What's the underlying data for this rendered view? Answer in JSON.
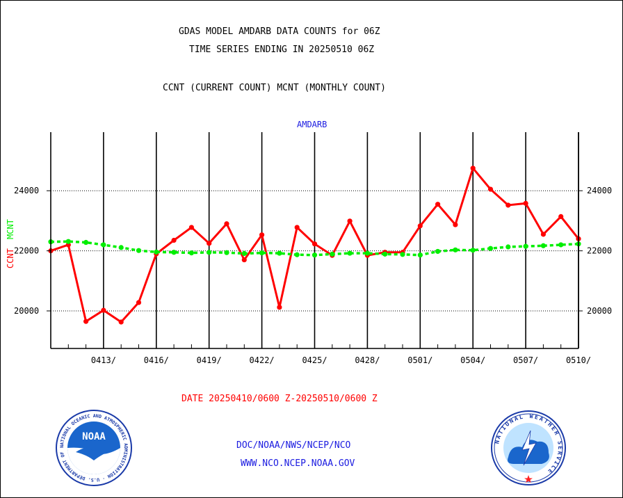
{
  "header": {
    "title_line1": "GDAS MODEL AMDARB DATA COUNTS for 06Z",
    "title_line2": "TIME SERIES ENDING IN 20250510 06Z",
    "subtitle": "CCNT (CURRENT COUNT) MCNT (MONTHLY COUNT)"
  },
  "footer": {
    "date_range": "DATE 20250410/0600 Z-20250510/0600 Z",
    "org_line": "DOC/NOAA/NWS/NCEP/NCO",
    "url_line": "WWW.NCO.NCEP.NOAA.GOV"
  },
  "logos": {
    "noaa_text": "NOAA",
    "noaa_ring": "NATIONAL OCEANIC AND ATMOSPHERIC ADMINISTRATION · U.S. DEPARTMENT OF COMMERCE ·",
    "nws_ring": "NATIONAL WEATHER SERVICE"
  },
  "colors": {
    "ccnt": "#ff0000",
    "mcnt": "#00ee00",
    "axis": "#000000",
    "panel_label": "#1a1ae0"
  },
  "chart_data": {
    "type": "line",
    "title": "AMDARB",
    "ylabel_ccnt": "CCNT",
    "ylabel_mcnt": "MCNT",
    "ylim": [
      18750,
      25950
    ],
    "y_ticks": [
      20000,
      22000,
      24000
    ],
    "y_tick_labels": [
      "20000",
      "22000",
      "24000"
    ],
    "x_range": [
      "2025-04-10",
      "2025-05-10"
    ],
    "x_ticks": [
      "2025-04-13",
      "2025-04-16",
      "2025-04-19",
      "2025-04-22",
      "2025-04-25",
      "2025-04-28",
      "2025-05-01",
      "2025-05-04",
      "2025-05-07",
      "2025-05-10"
    ],
    "x_tick_labels": [
      "0413/",
      "0416/",
      "0419/",
      "0422/",
      "0425/",
      "0428/",
      "0501/",
      "0504/",
      "0507/",
      "0510/"
    ],
    "grid": true,
    "series": [
      {
        "name": "CCNT",
        "color": "#ff0000",
        "points": [
          [
            "2025-04-10",
            22000
          ],
          [
            "2025-04-11",
            22200
          ],
          [
            "2025-04-12",
            19650
          ],
          [
            "2025-04-13",
            20020
          ],
          [
            "2025-04-14",
            19630
          ],
          [
            "2025-04-15",
            20280
          ],
          [
            "2025-04-16",
            21900
          ],
          [
            "2025-04-17",
            22350
          ],
          [
            "2025-04-18",
            22780
          ],
          [
            "2025-04-19",
            22250
          ],
          [
            "2025-04-20",
            22900
          ],
          [
            "2025-04-21",
            21700
          ],
          [
            "2025-04-22",
            22530
          ],
          [
            "2025-04-23",
            20120
          ],
          [
            "2025-04-24",
            22780
          ],
          [
            "2025-04-25",
            22230
          ],
          [
            "2025-04-26",
            21850
          ],
          [
            "2025-04-27",
            22990
          ],
          [
            "2025-04-28",
            21850
          ],
          [
            "2025-04-29",
            21950
          ],
          [
            "2025-04-30",
            21950
          ],
          [
            "2025-05-01",
            22830
          ],
          [
            "2025-05-02",
            23550
          ],
          [
            "2025-05-03",
            22870
          ],
          [
            "2025-05-04",
            24750
          ],
          [
            "2025-05-05",
            24050
          ],
          [
            "2025-05-06",
            23520
          ],
          [
            "2025-05-07",
            23580
          ],
          [
            "2025-05-08",
            22550
          ],
          [
            "2025-05-09",
            23140
          ],
          [
            "2025-05-10",
            22400
          ]
        ]
      },
      {
        "name": "MCNT",
        "color": "#00ee00",
        "points": [
          [
            "2025-04-10",
            22300
          ],
          [
            "2025-04-11",
            22310
          ],
          [
            "2025-04-12",
            22280
          ],
          [
            "2025-04-13",
            22200
          ],
          [
            "2025-04-14",
            22110
          ],
          [
            "2025-04-15",
            22010
          ],
          [
            "2025-04-16",
            21960
          ],
          [
            "2025-04-17",
            21950
          ],
          [
            "2025-04-18",
            21930
          ],
          [
            "2025-04-19",
            21950
          ],
          [
            "2025-04-20",
            21940
          ],
          [
            "2025-04-21",
            21910
          ],
          [
            "2025-04-22",
            21930
          ],
          [
            "2025-04-23",
            21920
          ],
          [
            "2025-04-24",
            21870
          ],
          [
            "2025-04-25",
            21860
          ],
          [
            "2025-04-26",
            21890
          ],
          [
            "2025-04-27",
            21920
          ],
          [
            "2025-04-28",
            21920
          ],
          [
            "2025-04-29",
            21890
          ],
          [
            "2025-04-30",
            21880
          ],
          [
            "2025-05-01",
            21860
          ],
          [
            "2025-05-02",
            21980
          ],
          [
            "2025-05-03",
            22030
          ],
          [
            "2025-05-04",
            22020
          ],
          [
            "2025-05-05",
            22080
          ],
          [
            "2025-05-06",
            22130
          ],
          [
            "2025-05-07",
            22150
          ],
          [
            "2025-05-08",
            22170
          ],
          [
            "2025-05-09",
            22200
          ],
          [
            "2025-05-10",
            22230
          ]
        ]
      }
    ]
  }
}
